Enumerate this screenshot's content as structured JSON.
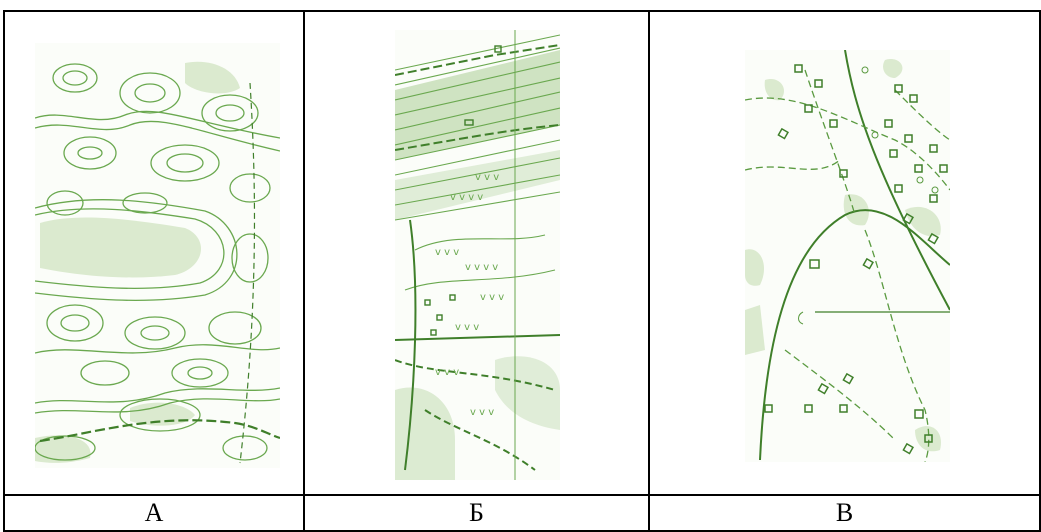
{
  "panels": [
    {
      "label": "А",
      "icon": "topographic-map-contours"
    },
    {
      "label": "Б",
      "icon": "topographic-map-slope-roads"
    },
    {
      "label": "В",
      "icon": "topographic-map-settlement"
    }
  ],
  "colors": {
    "map_line": "#5a9a40",
    "map_fill": "#cfe3c2",
    "map_fill_light": "#e6f0df",
    "border": "#000000"
  }
}
